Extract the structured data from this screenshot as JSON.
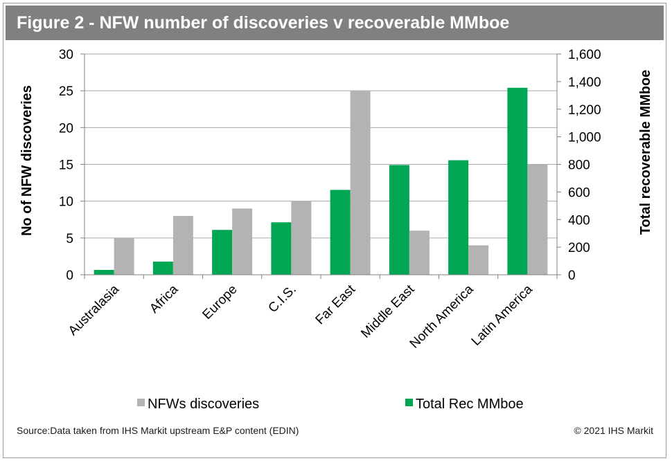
{
  "header": {
    "title": "Figure 2 - NFW number of discoveries v recoverable MMboe"
  },
  "footer": {
    "source": "Source:Data taken from IHS Markit upstream E&P content (EDIN)",
    "copyright": "© 2021 IHS Markit"
  },
  "chart_data": {
    "type": "bar",
    "title": "Figure 2 - NFW number of discoveries v recoverable MMboe",
    "categories": [
      "Australasia",
      "Africa",
      "Europe",
      "C.I.S.",
      "Far East",
      "Middle East",
      "North America",
      "Latin America"
    ],
    "series": [
      {
        "name": "Total Rec MMboe",
        "axis": "right",
        "color": "#00a651",
        "values": [
          35,
          95,
          325,
          380,
          615,
          795,
          830,
          1355
        ]
      },
      {
        "name": "NFWs discoveries",
        "axis": "left",
        "color": "#b3b3b3",
        "values": [
          5,
          8,
          9,
          10,
          25,
          6,
          4,
          15
        ]
      }
    ],
    "ylabel": "No of NFW discoveries",
    "ylabel_right": "Total recoverable MMboe",
    "ylim": [
      0,
      30
    ],
    "ylim_right": [
      0,
      1600
    ],
    "yticks": [
      "0",
      "5",
      "10",
      "15",
      "20",
      "25",
      "30"
    ],
    "yticks_right": [
      "0",
      "200",
      "400",
      "600",
      "800",
      "1,000",
      "1,200",
      "1,400",
      "1,600"
    ],
    "grid": true,
    "legend_position": "bottom",
    "legend_order": [
      "NFWs discoveries",
      "Total Rec MMboe"
    ]
  }
}
